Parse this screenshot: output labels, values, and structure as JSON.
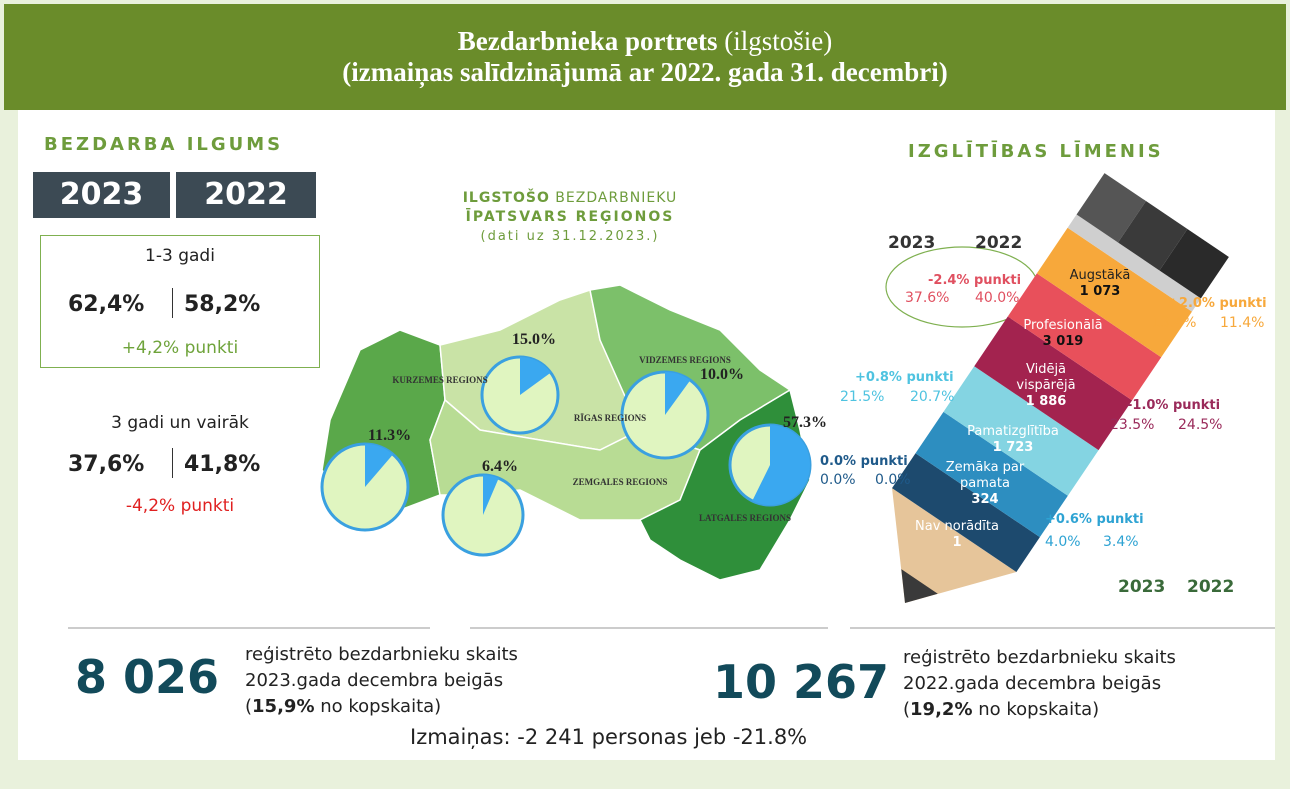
{
  "header": {
    "title_bold": "Bezdarbnieka portrets",
    "title_normal": "(ilgstošie)",
    "subtitle": "(izmaiņas salīdzinājumā ar 2022. gada 31. decembri)"
  },
  "duration": {
    "title": "BEZDARBA ILGUMS",
    "years": [
      "2023",
      "2022"
    ],
    "groups": [
      {
        "label": "1-3 gadi",
        "v2023": "62,4%",
        "v2022": "58,2%",
        "change": "+4,2% punkti"
      },
      {
        "label": "3 gadi un vairāk",
        "v2023": "37,6%",
        "v2022": "41,8%",
        "change": "-4,2% punkti"
      }
    ]
  },
  "map": {
    "title_bold": "ILGSTOŠO",
    "title_normal": "BEZDARBNIEKU",
    "title_2": "ĪPATSVARS REĢIONOS",
    "note": "(dati uz 31.12.2023.)",
    "regions": [
      {
        "name": "KURZEMES REGIONS",
        "value": 11.3,
        "label": "11.3%"
      },
      {
        "name": "RĪGAS REGIONS",
        "value": 15.0,
        "label": "15.0%"
      },
      {
        "name": "VIDZEMES REGIONS",
        "value": 10.0,
        "label": "10.0%"
      },
      {
        "name": "ZEMGALES REGIONS",
        "value": 6.4,
        "label": "6.4%"
      },
      {
        "name": "LATGALES REGIONS",
        "value": 57.3,
        "label": "57.3%"
      }
    ]
  },
  "education": {
    "title": "IZGLĪTĪBAS LĪMENIS",
    "years": [
      "2023",
      "2022"
    ],
    "levels": [
      {
        "name": "Augstākā",
        "count": "1 073",
        "change": "+2.0% punkti",
        "v2023": "13.4%",
        "v2022": "11.4%"
      },
      {
        "name": "Profesionālā",
        "count": "3 019",
        "change": "-2.4% punkti",
        "v2023": "37.6%",
        "v2022": "40.0%"
      },
      {
        "name": "Vidējā vispārējā",
        "count": "1 886",
        "change": "-1.0% punkti",
        "v2023": "23.5%",
        "v2022": "24.5%"
      },
      {
        "name": "Pamatizglītība",
        "count": "1 723",
        "change": "+0.8% punkti",
        "v2023": "21.5%",
        "v2022": "20.7%"
      },
      {
        "name": "Zemāka par pamata",
        "count": "324",
        "change": "+0.6% punkti",
        "v2023": "4.0%",
        "v2022": "3.4%"
      },
      {
        "name": "Nav norādīta",
        "count": "1",
        "change": "0.0% punkti",
        "v2023": "0.0%",
        "v2022": "0.0%"
      }
    ]
  },
  "totals": [
    {
      "number": "8 026",
      "line1": "reģistrēto bezdarbnieku skaits",
      "line2": "2023.gada decembra beigās",
      "open": "(",
      "share": "15,9%",
      "rest": " no kopskaita)"
    },
    {
      "number": "10 267",
      "line1": "reģistrēto bezdarbnieku skaits",
      "line2": "2022.gada decembra beigās",
      "open": "(",
      "share": "19,2%",
      "rest": " no kopskaita)"
    }
  ],
  "change_note": "Izmaiņas: -2 241 personas jeb -21.8%"
}
